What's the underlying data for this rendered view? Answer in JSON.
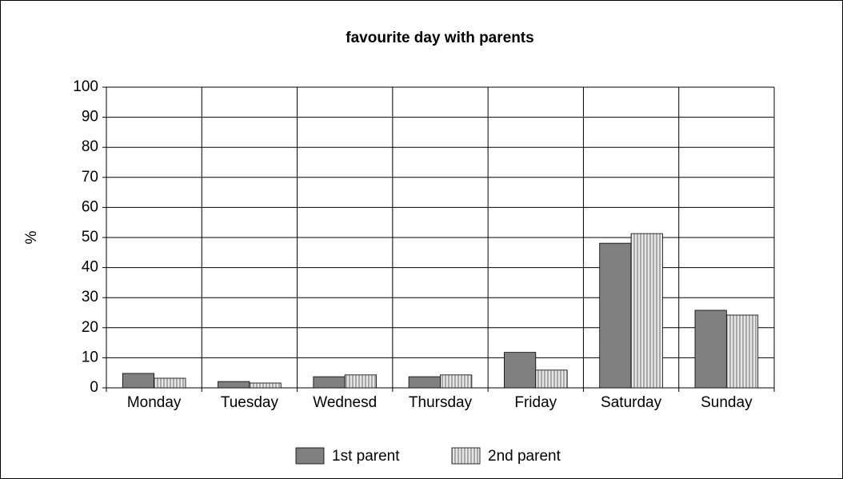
{
  "chart_data": {
    "type": "bar",
    "title": "favourite day with parents",
    "y_label": "%",
    "categories": [
      "Monday",
      "Tuesday",
      "Wednesd",
      "Thursday",
      "Friday",
      "Saturday",
      "Sunday"
    ],
    "series": [
      {
        "name": "1st parent",
        "color": "#808080",
        "values": [
          4.8,
          2.1,
          3.7,
          3.7,
          11.8,
          48.1,
          25.8
        ]
      },
      {
        "name": "2nd parent",
        "color": "#c8c8c8",
        "values": [
          3.2,
          1.6,
          4.3,
          4.3,
          5.9,
          51.3,
          24.2
        ]
      }
    ],
    "ylim": [
      0,
      100
    ],
    "yticks": [
      0,
      10,
      20,
      30,
      40,
      50,
      60,
      70,
      80,
      90,
      100
    ],
    "grid": true,
    "legend": "bottom"
  }
}
